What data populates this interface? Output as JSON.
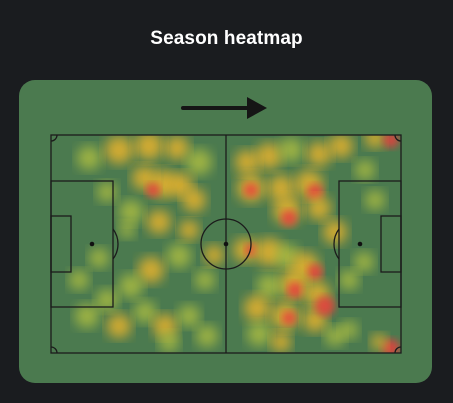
{
  "title": "Season heatmap",
  "colors": {
    "background": "#1a1c1f",
    "pitch": "#4b7a4f",
    "lines": "#1b1b1b",
    "heat_low": "#b9c640",
    "heat_mid": "#f3b72b",
    "heat_high": "#e8403c"
  },
  "icons": {
    "direction": "attack-direction-arrow-icon"
  }
}
